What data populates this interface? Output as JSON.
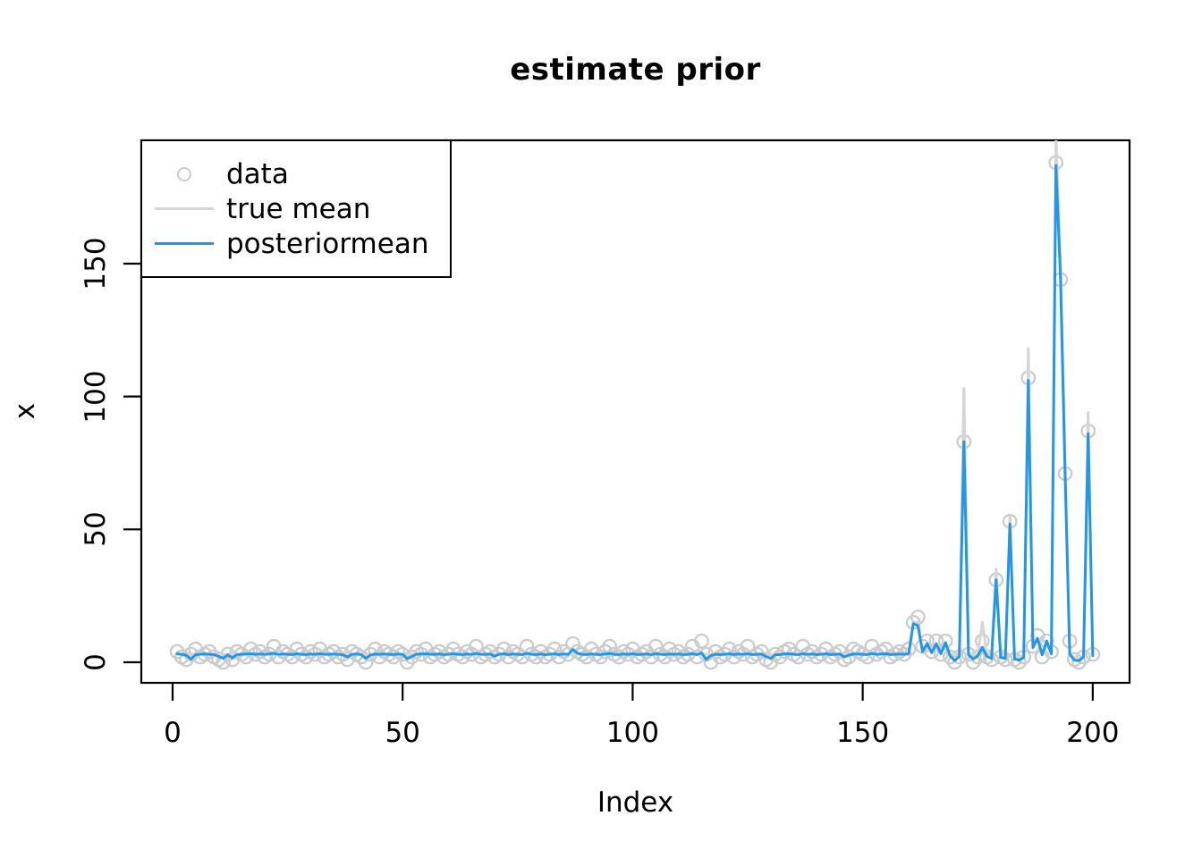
{
  "chart_data": {
    "type": "line+scatter",
    "title": "estimate prior",
    "xlabel": "Index",
    "ylabel": "x",
    "xlim": [
      -6.8,
      208.0
    ],
    "ylim": [
      -7.74,
      196.4
    ],
    "xticks": [
      0,
      50,
      100,
      150,
      200
    ],
    "yticks": [
      0,
      50,
      100,
      150
    ],
    "xtick_labels": [
      "0",
      "50",
      "100",
      "150",
      "200"
    ],
    "ytick_labels": [
      "0",
      "50",
      "100",
      "150"
    ],
    "x_start": 1,
    "grid": false,
    "legend_position": "topleft",
    "legend": [
      {
        "label": "data",
        "symbol": "circle",
        "color": "#CBCBCB"
      },
      {
        "label": "true mean",
        "symbol": "line",
        "color": "#D5D5D5"
      },
      {
        "label": "posteriormean",
        "symbol": "line",
        "color": "#2297E6"
      }
    ],
    "series": [
      {
        "name": "data",
        "type": "scatter",
        "color": "#CBCBCB",
        "values": [
          4,
          2,
          1,
          3,
          5,
          2,
          3,
          4,
          2,
          1,
          0,
          3,
          1,
          4,
          3,
          2,
          5,
          3,
          4,
          2,
          3,
          6,
          2,
          4,
          3,
          2,
          5,
          3,
          2,
          4,
          3,
          5,
          2,
          3,
          4,
          2,
          3,
          1,
          4,
          3,
          2,
          0,
          3,
          5,
          2,
          4,
          3,
          2,
          4,
          3,
          0,
          2,
          4,
          3,
          5,
          2,
          3,
          4,
          2,
          3,
          5,
          3,
          2,
          4,
          3,
          6,
          2,
          3,
          4,
          2,
          3,
          5,
          2,
          4,
          3,
          2,
          6,
          3,
          2,
          4,
          2,
          3,
          5,
          2,
          4,
          3,
          7,
          4,
          3,
          2,
          5,
          3,
          2,
          4,
          6,
          3,
          2,
          4,
          3,
          5,
          2,
          3,
          4,
          2,
          6,
          3,
          2,
          5,
          3,
          4,
          2,
          3,
          6,
          2,
          8,
          3,
          0,
          4,
          2,
          3,
          5,
          2,
          4,
          3,
          6,
          2,
          3,
          4,
          1,
          0,
          3,
          2,
          4,
          5,
          3,
          2,
          6,
          3,
          4,
          2,
          3,
          5,
          2,
          3,
          4,
          1,
          2,
          5,
          4,
          3,
          2,
          6,
          3,
          4,
          5,
          2,
          3,
          4,
          3,
          5,
          15,
          17,
          6,
          8,
          4,
          8,
          3,
          8,
          2,
          0,
          2,
          83,
          3,
          0,
          2,
          8,
          2,
          1,
          31,
          2,
          1,
          53,
          1,
          0,
          2,
          107,
          6,
          10,
          2,
          8,
          4,
          188,
          144,
          71,
          8,
          1,
          0,
          2,
          87,
          3
        ]
      },
      {
        "name": "true mean",
        "type": "line",
        "color": "#D5D5D5",
        "values": [
          3,
          3,
          3,
          3,
          3,
          3,
          3,
          3,
          3,
          3,
          3,
          3,
          3,
          3,
          3,
          3,
          3,
          3,
          3,
          3,
          3,
          3,
          3,
          3,
          3,
          3,
          3,
          3,
          3,
          3,
          3,
          3,
          3,
          3,
          3,
          3,
          3,
          3,
          3,
          3,
          3,
          3,
          3,
          3,
          3,
          3,
          3,
          3,
          3,
          3,
          3,
          3,
          3,
          3,
          3,
          3,
          3,
          3,
          3,
          3,
          3,
          3,
          3,
          3,
          3,
          3,
          3,
          3,
          3,
          3,
          3,
          3,
          3,
          3,
          3,
          3,
          3,
          3,
          3,
          3,
          3,
          3,
          3,
          3,
          3,
          3,
          3,
          3,
          3,
          3,
          3,
          3,
          3,
          3,
          3,
          3,
          3,
          3,
          3,
          3,
          3,
          3,
          3,
          3,
          3,
          3,
          3,
          3,
          3,
          3,
          3,
          3,
          3,
          3,
          3,
          3,
          3,
          3,
          3,
          3,
          3,
          3,
          3,
          3,
          3,
          3,
          3,
          3,
          3,
          3,
          3,
          3,
          3,
          3,
          3,
          3,
          3,
          3,
          3,
          3,
          3,
          3,
          3,
          3,
          3,
          3,
          3,
          3,
          3,
          3,
          3,
          3,
          3,
          3,
          3,
          3,
          3,
          3,
          3,
          3,
          15,
          15,
          5,
          5,
          5,
          5,
          5,
          5,
          3,
          3,
          3,
          103,
          3,
          3,
          3,
          15,
          3,
          3,
          35,
          2,
          2,
          55,
          2,
          2,
          2,
          118,
          8,
          8,
          8,
          8,
          3,
          199,
          150,
          75,
          3,
          2,
          2,
          2,
          94,
          3
        ]
      },
      {
        "name": "posteriormean",
        "type": "line",
        "color": "#2297E6",
        "values": [
          3.2,
          3.0,
          2.6,
          1.2,
          2.8,
          3.0,
          3.1,
          3.0,
          2.9,
          2.2,
          1.5,
          2.8,
          1.6,
          2.9,
          3.0,
          3.1,
          3.2,
          3.0,
          3.1,
          3.0,
          3.1,
          3.3,
          3.0,
          3.1,
          3.0,
          2.9,
          3.2,
          3.0,
          2.9,
          3.1,
          3.0,
          3.2,
          3.0,
          3.0,
          3.1,
          3.0,
          2.8,
          2.0,
          3.0,
          3.1,
          2.9,
          1.4,
          2.7,
          3.1,
          3.0,
          3.1,
          3.0,
          2.9,
          3.1,
          3.0,
          1.3,
          2.2,
          3.0,
          3.1,
          3.2,
          3.0,
          3.0,
          3.1,
          2.9,
          3.0,
          3.2,
          3.0,
          2.9,
          3.1,
          3.0,
          3.3,
          3.0,
          3.0,
          3.1,
          2.3,
          3.0,
          3.2,
          2.9,
          3.1,
          3.0,
          2.9,
          3.3,
          3.0,
          2.9,
          3.1,
          2.8,
          3.0,
          3.2,
          2.9,
          3.1,
          3.0,
          4.8,
          3.4,
          3.0,
          2.9,
          3.1,
          3.0,
          2.9,
          3.1,
          3.3,
          3.0,
          2.9,
          3.1,
          3.0,
          3.2,
          2.9,
          3.0,
          3.1,
          2.9,
          3.2,
          3.0,
          2.9,
          3.1,
          3.0,
          3.1,
          2.9,
          3.0,
          3.2,
          2.9,
          3.5,
          1.0,
          2.5,
          3.0,
          2.9,
          3.0,
          3.2,
          2.9,
          3.1,
          3.0,
          3.2,
          2.9,
          3.0,
          3.1,
          2.2,
          1.4,
          2.8,
          2.9,
          3.1,
          3.2,
          3.0,
          2.9,
          3.2,
          3.0,
          3.1,
          2.9,
          3.0,
          3.2,
          2.9,
          3.0,
          3.1,
          2.0,
          2.7,
          3.1,
          3.1,
          3.0,
          2.9,
          3.3,
          3.0,
          3.1,
          3.2,
          2.9,
          3.0,
          3.1,
          3.0,
          3.3,
          14.5,
          13.8,
          4.0,
          7.0,
          3.6,
          7.0,
          3.2,
          7.4,
          2.4,
          0.6,
          2.2,
          83,
          2.8,
          1.2,
          2.4,
          5.5,
          2.2,
          1.4,
          31,
          1.8,
          1.4,
          52,
          1.2,
          0.8,
          1.8,
          106,
          5.5,
          9.0,
          2.8,
          8.0,
          3.2,
          187,
          144,
          70,
          3.0,
          0.8,
          0.6,
          2.0,
          86,
          2.5
        ]
      }
    ]
  }
}
